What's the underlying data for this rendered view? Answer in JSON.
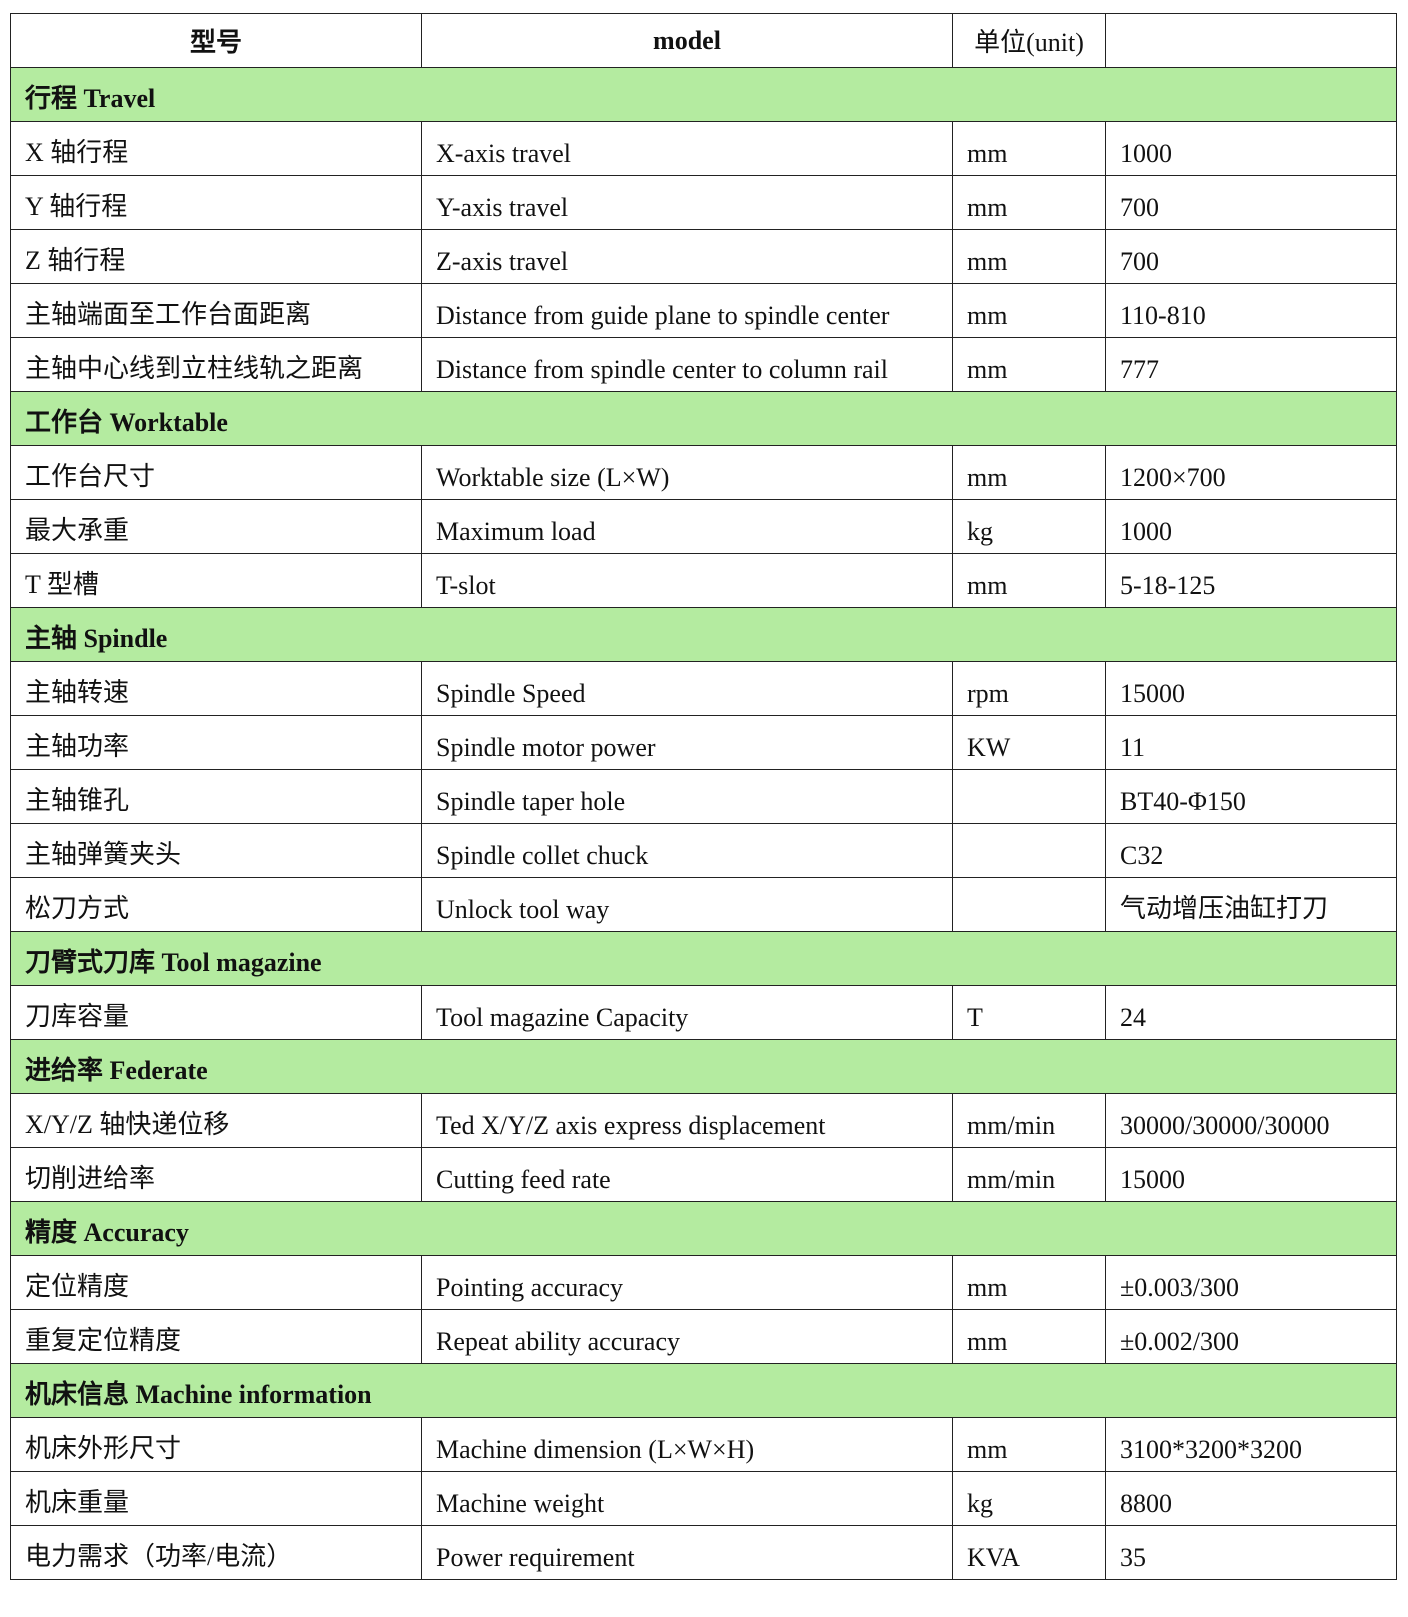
{
  "header": {
    "cn": "型号",
    "en": "model",
    "unit": "单位(unit)"
  },
  "sections": [
    {
      "title": "行程 Travel",
      "rows": [
        {
          "cn": "X 轴行程",
          "en": "X-axis travel",
          "unit": "mm",
          "value": "1000"
        },
        {
          "cn": "Y 轴行程",
          "en": "Y-axis travel",
          "unit": "mm",
          "value": "700"
        },
        {
          "cn": "Z 轴行程",
          "en": "Z-axis travel",
          "unit": "mm",
          "value": "700"
        },
        {
          "cn": "主轴端面至工作台面距离",
          "en": "Distance from guide plane to spindle center",
          "unit": "mm",
          "value": "110-810"
        },
        {
          "cn": "主轴中心线到立柱线轨之距离",
          "en": "Distance from spindle center to column rail",
          "unit": "mm",
          "value": "777"
        }
      ]
    },
    {
      "title": "工作台 Worktable",
      "rows": [
        {
          "cn": "工作台尺寸",
          "en": "Worktable size (L×W)",
          "unit": "mm",
          "value": "1200×700"
        },
        {
          "cn": "最大承重",
          "en": "Maximum load",
          "unit": "kg",
          "value": "1000"
        },
        {
          "cn": "T 型槽",
          "en": "T-slot",
          "unit": "mm",
          "value": "5-18-125"
        }
      ]
    },
    {
      "title": "主轴 Spindle",
      "rows": [
        {
          "cn": "主轴转速",
          "en": "Spindle Speed",
          "unit": "rpm",
          "value": "15000"
        },
        {
          "cn": "主轴功率",
          "en": "Spindle motor power",
          "unit": "KW",
          "value": "11"
        },
        {
          "cn": "主轴锥孔",
          "en": "Spindle taper hole",
          "value": "BT40-Φ150"
        },
        {
          "cn": "主轴弹簧夹头",
          "en": "Spindle collet chuck",
          "value": "C32"
        },
        {
          "cn": "松刀方式",
          "en": "Unlock tool way",
          "value": "气动增压油缸打刀"
        }
      ]
    },
    {
      "title": "刀臂式刀库 Tool magazine",
      "rows": [
        {
          "cn": "刀库容量",
          "en": "Tool magazine Capacity",
          "unit": "T",
          "value": "24"
        }
      ]
    },
    {
      "title": "进给率 Federate",
      "rows": [
        {
          "cn": "X/Y/Z 轴快递位移",
          "en": "Ted X/Y/Z axis express displacement",
          "unit": "mm/min",
          "value": "30000/30000/30000"
        },
        {
          "cn": "切削进给率",
          "en": "Cutting feed rate",
          "unit": "mm/min",
          "value": "15000"
        }
      ]
    },
    {
      "title": "精度 Accuracy",
      "rows": [
        {
          "cn": "定位精度",
          "en": "Pointing accuracy",
          "unit": "mm",
          "value": "±0.003/300"
        },
        {
          "cn": "重复定位精度",
          "en": "Repeat ability accuracy",
          "unit": "mm",
          "value": "±0.002/300"
        }
      ]
    },
    {
      "title": "机床信息 Machine information",
      "rows": [
        {
          "cn": "机床外形尺寸",
          "en": "Machine dimension (L×W×H)",
          "unit": "mm",
          "value": "3100*3200*3200"
        },
        {
          "cn": "机床重量",
          "en": "Machine weight",
          "unit": "kg",
          "value": "8800"
        },
        {
          "cn": "电力需求（功率/电流）",
          "en": "Power requirement",
          "unit": "KVA",
          "value": "35"
        }
      ]
    }
  ]
}
